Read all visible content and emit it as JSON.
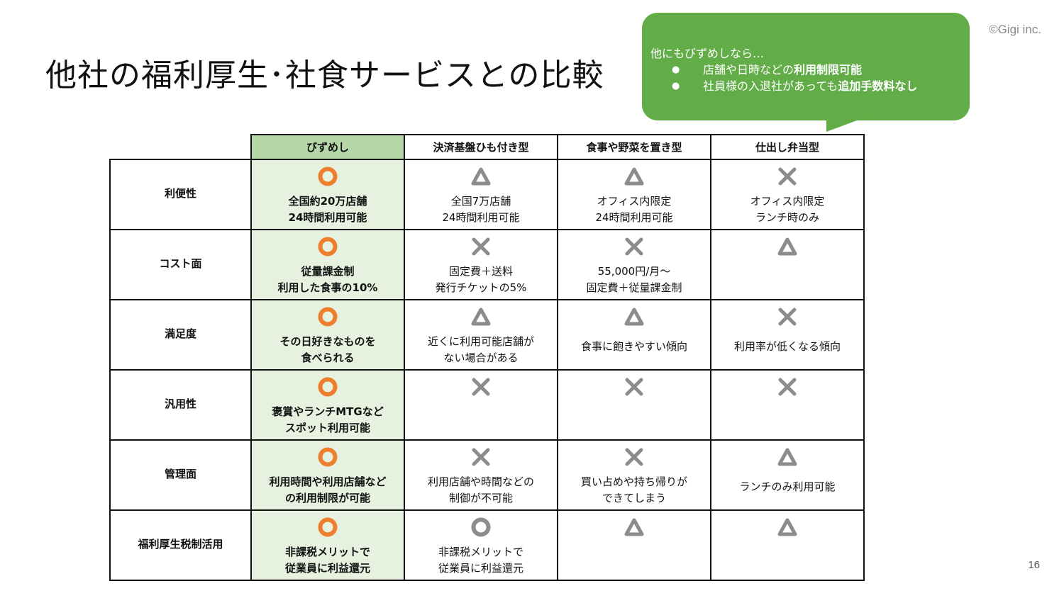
{
  "page": {
    "title": "他社の福利厚生･社食サービスとの比較",
    "copyright": "©Gigi inc.",
    "page_number": "16"
  },
  "callout": {
    "intro": "他にもびずめしなら…",
    "bullet1_pre": "店舗や日時などの",
    "bullet1_bold": "利用制限可能",
    "bullet2_pre": "社員様の入退社があっても",
    "bullet2_bold": "追加手数料なし",
    "color": "#62ad47"
  },
  "table": {
    "headers": [
      "",
      "びずめし",
      "決済基盤ひも付き型",
      "食事や野菜を置き型",
      "仕出し弁当型"
    ],
    "rows": [
      {
        "label": "利便性",
        "cells": [
          {
            "mark": "circle-orange",
            "text": "全国約20万店舗\n24時間利用可能"
          },
          {
            "mark": "triangle",
            "text": "全国7万店舗\n24時間利用可能"
          },
          {
            "mark": "triangle",
            "text": "オフィス内限定\n24時間利用可能"
          },
          {
            "mark": "cross",
            "text": "オフィス内限定\nランチ時のみ"
          }
        ]
      },
      {
        "label": "コスト面",
        "cells": [
          {
            "mark": "circle-orange",
            "text": "従量課金制\n利用した食事の10%"
          },
          {
            "mark": "cross",
            "text": "固定費＋送料\n発行チケットの5%"
          },
          {
            "mark": "cross",
            "text": "55,000円/月～\n固定費＋従量課金制"
          },
          {
            "mark": "triangle",
            "text": ""
          }
        ]
      },
      {
        "label": "満足度",
        "cells": [
          {
            "mark": "circle-orange",
            "text": "その日好きなものを\n食べられる"
          },
          {
            "mark": "triangle",
            "text": "近くに利用可能店舗が\nない場合がある"
          },
          {
            "mark": "triangle",
            "text": "食事に飽きやすい傾向",
            "low": true
          },
          {
            "mark": "cross",
            "text": "利用率が低くなる傾向",
            "low": true
          }
        ]
      },
      {
        "label": "汎用性",
        "cells": [
          {
            "mark": "circle-orange",
            "text": "褒賞やランチMTGなど\nスポット利用可能"
          },
          {
            "mark": "cross",
            "text": ""
          },
          {
            "mark": "cross",
            "text": ""
          },
          {
            "mark": "cross",
            "text": ""
          }
        ]
      },
      {
        "label": "管理面",
        "cells": [
          {
            "mark": "circle-orange",
            "text": "利用時間や利用店舗など\nの利用制限が可能"
          },
          {
            "mark": "cross",
            "text": "利用店舗や時間などの\n制御が不可能"
          },
          {
            "mark": "cross",
            "text": "買い占めや持ち帰りが\nできてしまう"
          },
          {
            "mark": "triangle",
            "text": "ランチのみ利用可能",
            "low": true
          }
        ]
      },
      {
        "label": "福利厚生税制活用",
        "cells": [
          {
            "mark": "circle-orange",
            "text": "非課税メリットで\n従業員に利益還元"
          },
          {
            "mark": "circle-gray",
            "text": "非課税メリットで\n従業員に利益還元"
          },
          {
            "mark": "triangle",
            "text": ""
          },
          {
            "mark": "triangle",
            "text": ""
          }
        ]
      }
    ],
    "colors": {
      "highlight_header": "#b6d7a8",
      "highlight_cell": "#e6f2df",
      "orange_mark": "#ee7d2e",
      "gray_mark": "#8c8c8c"
    }
  }
}
